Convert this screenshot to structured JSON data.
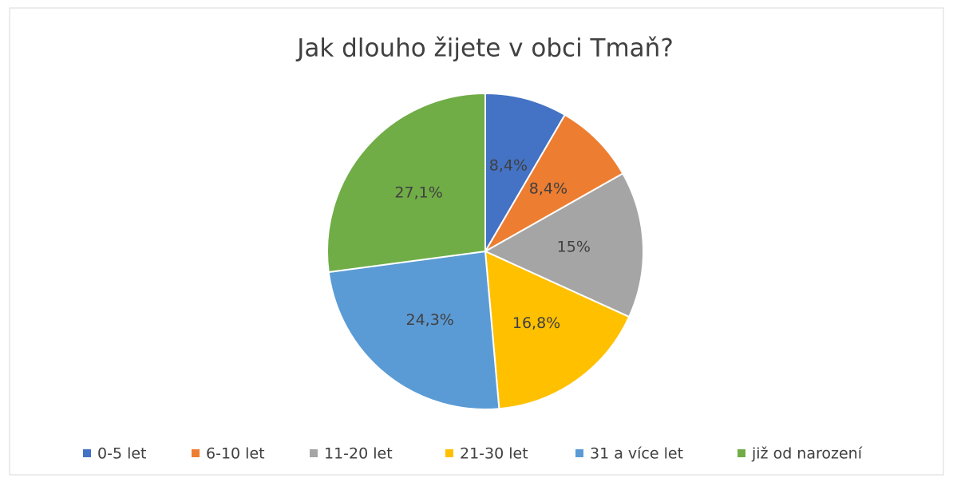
{
  "chart_data": {
    "type": "pie",
    "title": "Jak dlouho žijete v obci Tmaň?",
    "categories": [
      "0-5 let",
      "6-10 let",
      "11-20 let",
      "21-30 let",
      "31 a více let",
      "již od narození"
    ],
    "values": [
      8.4,
      8.4,
      15,
      16.8,
      24.3,
      27.1
    ],
    "value_labels": [
      "8,4%",
      "8,4%",
      "15%",
      "16,8%",
      "24,3%",
      "27,1%"
    ],
    "colors": [
      "#4472c4",
      "#ed7d31",
      "#a5a5a5",
      "#ffc000",
      "#5b9bd5",
      "#70ad47"
    ],
    "legend": "bottom"
  }
}
